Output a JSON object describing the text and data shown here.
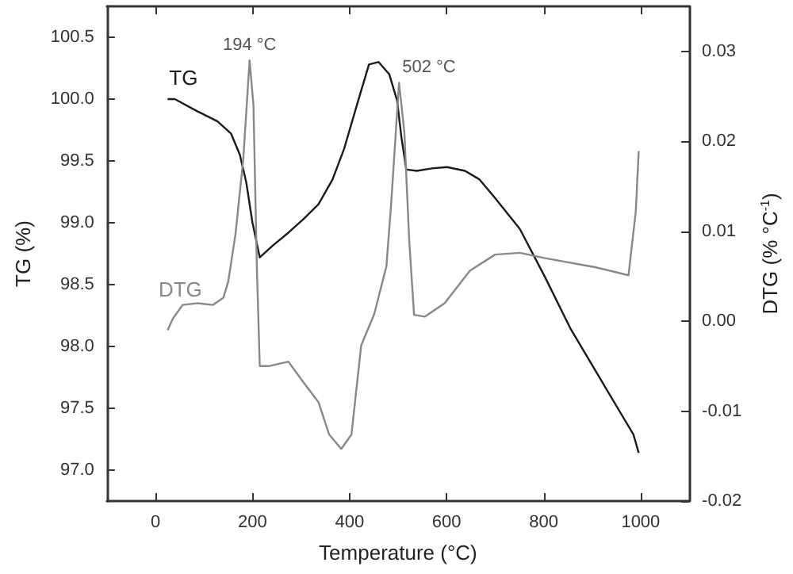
{
  "chart_data": {
    "type": "line",
    "xlabel": "Temperature (°C)",
    "ylabel": "TG (%)",
    "y2label": "DTG (% °C$^{-1}$)",
    "xlim": [
      -100,
      1100
    ],
    "xticks": [
      0,
      200,
      400,
      600,
      800,
      1000
    ],
    "ylim": [
      96.75,
      100.75
    ],
    "yticks": [
      {
        "value": 97,
        "label": "97.0"
      },
      97.5,
      {
        "value": 98,
        "label": "98.0"
      },
      98.5,
      {
        "value": 99,
        "label": "99.0"
      },
      99.5,
      {
        "value": 100,
        "label": "100.0"
      },
      100.5
    ],
    "y2lim": [
      -0.02,
      0.035
    ],
    "y2ticks": [
      {
        "value": -0.02,
        "label": "-0.02"
      },
      {
        "value": -0.01,
        "label": "-0.01"
      },
      {
        "value": 0,
        "label": "0.00"
      },
      {
        "value": 0.01,
        "label": "0.01"
      },
      {
        "value": 0.02,
        "label": "0.02"
      },
      {
        "value": 0.03,
        "label": "0.03"
      }
    ],
    "grid": false,
    "legend": false,
    "line_style": "solid",
    "series": [
      {
        "name": "TG",
        "color": "#1a1a1a",
        "x": [
          25,
          40,
          87,
          128,
          156,
          174,
          187,
          200,
          215,
          243,
          274,
          305,
          336,
          365,
          389,
          415,
          440,
          460,
          482,
          498,
          507,
          517,
          539,
          570,
          601,
          638,
          668,
          700,
          751,
          803,
          856,
          906,
          959,
          985,
          996
        ],
        "values": [
          100.0,
          100.0,
          99.9,
          99.82,
          99.72,
          99.55,
          99.33,
          99.0,
          98.72,
          98.82,
          98.92,
          99.03,
          99.15,
          99.35,
          99.6,
          99.95,
          100.28,
          100.3,
          100.2,
          99.99,
          99.69,
          99.43,
          99.42,
          99.44,
          99.45,
          99.42,
          99.35,
          99.2,
          98.95,
          98.56,
          98.14,
          97.81,
          97.46,
          97.29,
          97.14
        ]
      },
      {
        "name": "DTG",
        "color": "#888888",
        "axis": "y2",
        "x": [
          25,
          36,
          56,
          87,
          118,
          140,
          150,
          165,
          181,
          194,
          202,
          209,
          215,
          233,
          274,
          305,
          336,
          358,
          383,
          404,
          424,
          451,
          476,
          486,
          502,
          513,
          523,
          533,
          555,
          596,
          648,
          700,
          751,
          803,
          906,
          975,
          990,
          996
        ],
        "values": [
          -0.001,
          0.0003,
          0.0018,
          0.002,
          0.0018,
          0.0026,
          0.0044,
          0.0097,
          0.018,
          0.029,
          0.024,
          0.006,
          -0.005,
          -0.005,
          -0.0045,
          -0.0068,
          -0.009,
          -0.0126,
          -0.0142,
          -0.0126,
          -0.0027,
          0.0008,
          0.0061,
          0.0132,
          0.0265,
          0.021,
          0.009,
          0.0007,
          0.0005,
          0.002,
          0.0056,
          0.0074,
          0.0076,
          0.007,
          0.006,
          0.0051,
          0.0122,
          0.0189
        ]
      }
    ],
    "annotations": [
      "194 °C",
      "502 °C"
    ]
  }
}
